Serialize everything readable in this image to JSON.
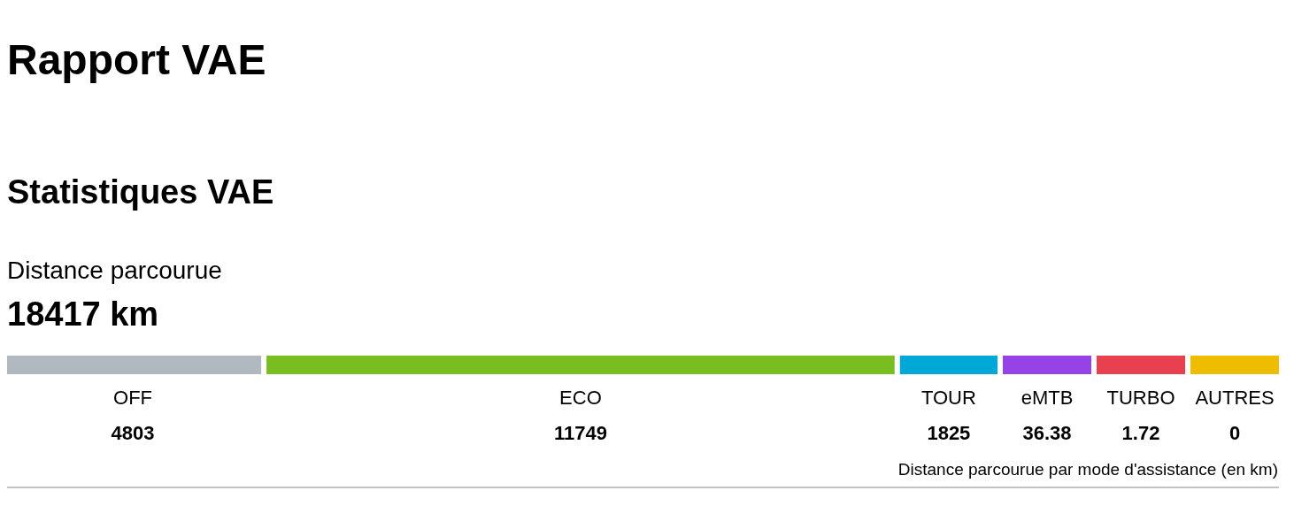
{
  "chart_data": {
    "type": "other",
    "title": "Rapport VAE",
    "subtitle": "Statistiques VAE",
    "categories": [
      "OFF",
      "ECO",
      "TOUR",
      "eMTB",
      "TURBO",
      "AUTRES"
    ],
    "values": [
      4803,
      11749,
      1825,
      36.38,
      1.72,
      0
    ],
    "colors": [
      "#b1b8c0",
      "#78be20",
      "#00a8d8",
      "#9543e6",
      "#e8404f",
      "#eebd00"
    ],
    "data_labels": true,
    "annotations": [
      "Distance parcourue",
      "18417 km",
      "Distance parcourue par mode d'assistance (en km)"
    ]
  }
}
